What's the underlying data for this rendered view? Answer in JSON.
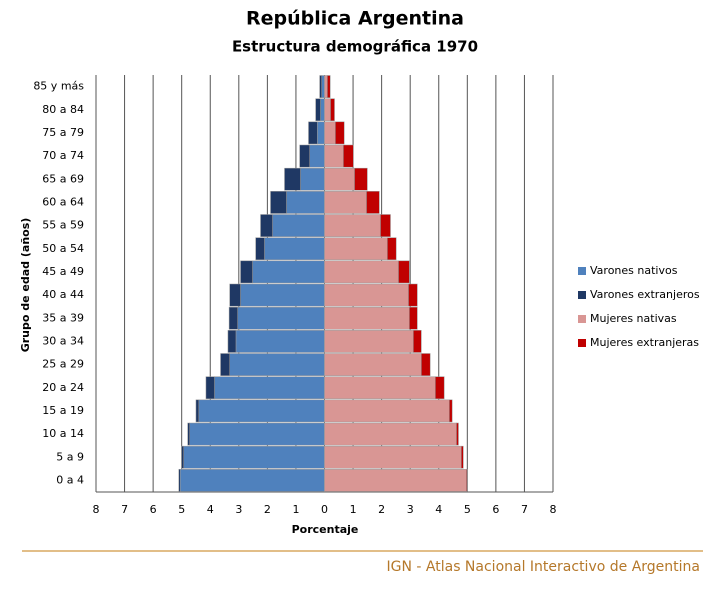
{
  "chart_data": {
    "type": "pyramid",
    "title": "República Argentina",
    "subtitle": "Estructura demográfica 1970",
    "xlabel": "Porcentaje",
    "ylabel": "Grupo de edad (años)",
    "categories": [
      "0 a 4",
      "5 a 9",
      "10 a 14",
      "15 a 19",
      "20 a 24",
      "25 a 29",
      "30 a 34",
      "35 a 39",
      "40 a 44",
      "45 a 49",
      "50 a 54",
      "55 a 59",
      "60 a 64",
      "65 a 69",
      "70 a 74",
      "75 a 79",
      "80 a 84",
      "85 y más"
    ],
    "series": [
      {
        "name": "Varones nativos",
        "color": "#4f81bd",
        "side": "left",
        "values": [
          5.05,
          4.93,
          4.72,
          4.4,
          3.85,
          3.32,
          3.1,
          3.04,
          2.94,
          2.52,
          2.1,
          1.82,
          1.33,
          0.84,
          0.52,
          0.25,
          0.14,
          0.1
        ]
      },
      {
        "name": "Varones extranjeros",
        "color": "#1f3864",
        "side": "left",
        "values": [
          0.05,
          0.07,
          0.07,
          0.1,
          0.3,
          0.32,
          0.28,
          0.3,
          0.38,
          0.42,
          0.31,
          0.42,
          0.56,
          0.56,
          0.35,
          0.31,
          0.17,
          0.07
        ]
      },
      {
        "name": "Mujeres nativas",
        "color": "#d99694",
        "side": "right",
        "values": [
          4.97,
          4.79,
          4.62,
          4.37,
          3.88,
          3.39,
          3.11,
          2.97,
          2.94,
          2.59,
          2.2,
          1.96,
          1.47,
          1.05,
          0.66,
          0.38,
          0.21,
          0.1
        ]
      },
      {
        "name": "Mujeres extranjeras",
        "color": "#c00000",
        "side": "right",
        "values": [
          0.03,
          0.07,
          0.07,
          0.1,
          0.31,
          0.31,
          0.28,
          0.28,
          0.31,
          0.38,
          0.31,
          0.35,
          0.45,
          0.45,
          0.35,
          0.31,
          0.14,
          0.1
        ]
      }
    ],
    "xlim": [
      -8,
      8
    ],
    "xticks": [
      {
        "value": -8,
        "label": "8"
      },
      {
        "value": -7,
        "label": "7"
      },
      {
        "value": -6,
        "label": "6"
      },
      {
        "value": -5,
        "label": "5"
      },
      {
        "value": -4,
        "label": "4"
      },
      {
        "value": -3,
        "label": "3"
      },
      {
        "value": -2,
        "label": "2"
      },
      {
        "value": -1,
        "label": "1"
      },
      0,
      1,
      2,
      3,
      4,
      5,
      6,
      7,
      8
    ],
    "grid": true
  },
  "footer": "IGN - Atlas Nacional Interactivo de Argentina"
}
